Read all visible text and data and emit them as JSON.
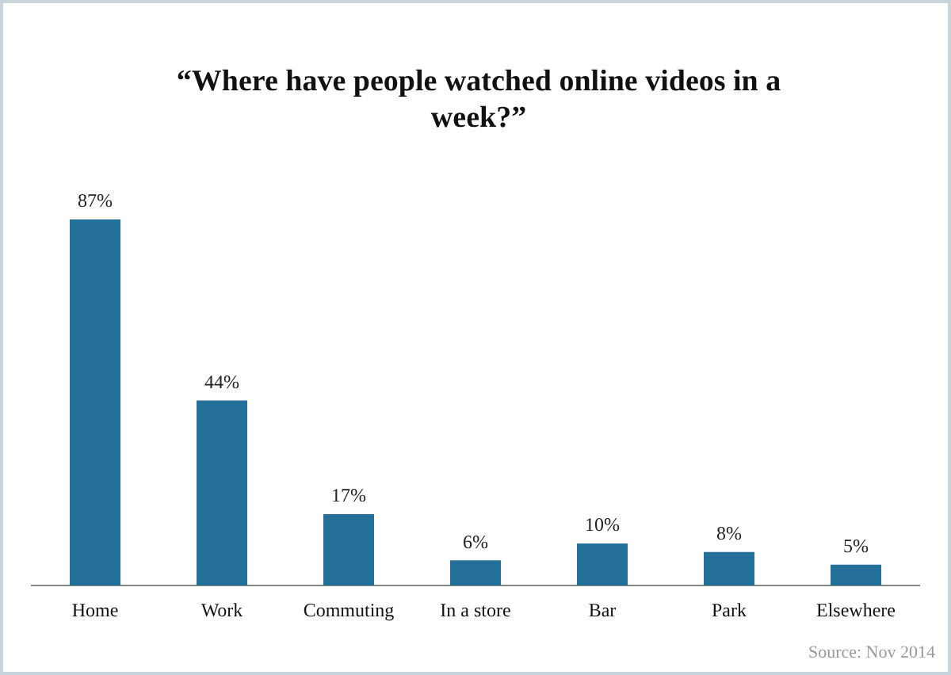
{
  "chart_data": {
    "type": "bar",
    "title": "“Where have people watched online videos in a week?”",
    "categories": [
      "Home",
      "Work",
      "Commuting",
      "In a store",
      "Bar",
      "Park",
      "Elsewhere"
    ],
    "values": [
      87,
      44,
      17,
      6,
      10,
      8,
      5
    ],
    "value_labels": [
      "87%",
      "44%",
      "17%",
      "6%",
      "10%",
      "8%",
      "5%"
    ],
    "color": "#246f99",
    "grid": false,
    "legend": false,
    "annotations": [
      "Source: Nov 2014"
    ]
  }
}
